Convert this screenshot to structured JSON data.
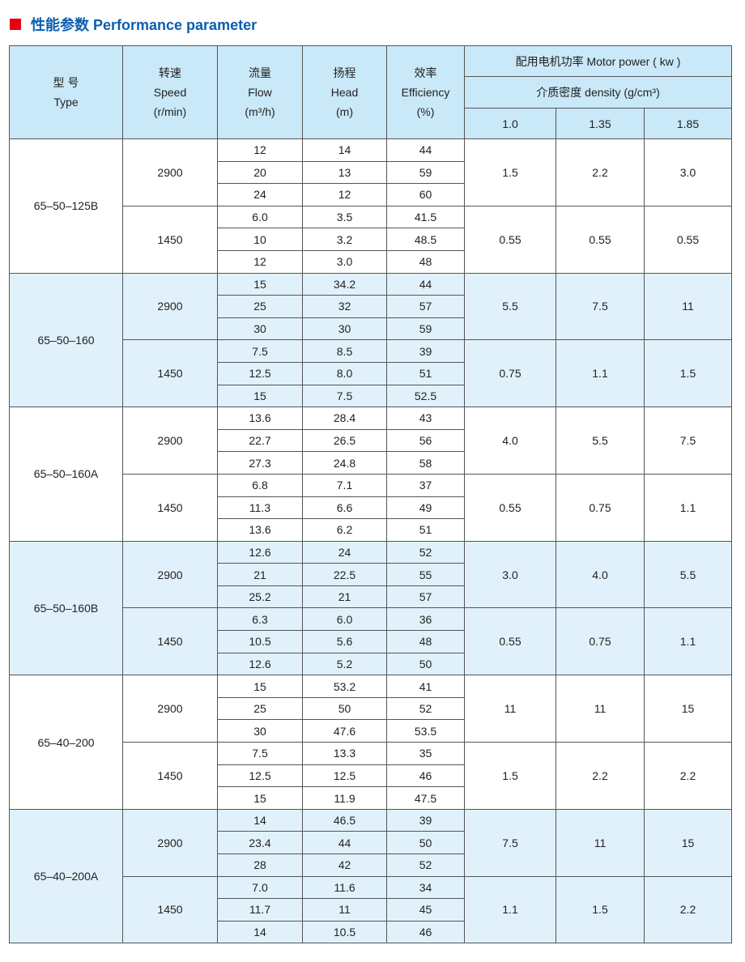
{
  "title": "性能参数 Performance parameter",
  "colors": {
    "accent_square": "#e60012",
    "title": "#0b5fae",
    "header_bg": "#c9e8f8",
    "alt_group_bg": "#e1f1fb"
  },
  "header": {
    "type": [
      "型  号",
      "Type"
    ],
    "speed": [
      "转速",
      "Speed",
      "(r/min)"
    ],
    "flow": [
      "流量",
      "Flow",
      "(m³/h)"
    ],
    "head": [
      "扬程",
      "Head",
      "(m)"
    ],
    "efficiency": [
      "效率",
      "Efficiency",
      "(%)"
    ],
    "motor_power": "配用电机功率 Motor power ( kw )",
    "density": "介质密度  density  (g/cm³)",
    "densities": [
      "1.0",
      "1.35",
      "1.85"
    ]
  },
  "models": [
    {
      "type": "65–50–125B",
      "speeds": [
        {
          "speed": "2900",
          "rows": [
            [
              "12",
              "14",
              "44"
            ],
            [
              "20",
              "13",
              "59"
            ],
            [
              "24",
              "12",
              "60"
            ]
          ],
          "power": [
            "1.5",
            "2.2",
            "3.0"
          ]
        },
        {
          "speed": "1450",
          "rows": [
            [
              "6.0",
              "3.5",
              "41.5"
            ],
            [
              "10",
              "3.2",
              "48.5"
            ],
            [
              "12",
              "3.0",
              "48"
            ]
          ],
          "power": [
            "0.55",
            "0.55",
            "0.55"
          ]
        }
      ]
    },
    {
      "type": "65–50–160",
      "speeds": [
        {
          "speed": "2900",
          "rows": [
            [
              "15",
              "34.2",
              "44"
            ],
            [
              "25",
              "32",
              "57"
            ],
            [
              "30",
              "30",
              "59"
            ]
          ],
          "power": [
            "5.5",
            "7.5",
            "11"
          ]
        },
        {
          "speed": "1450",
          "rows": [
            [
              "7.5",
              "8.5",
              "39"
            ],
            [
              "12.5",
              "8.0",
              "51"
            ],
            [
              "15",
              "7.5",
              "52.5"
            ]
          ],
          "power": [
            "0.75",
            "1.1",
            "1.5"
          ]
        }
      ]
    },
    {
      "type": "65–50–160A",
      "speeds": [
        {
          "speed": "2900",
          "rows": [
            [
              "13.6",
              "28.4",
              "43"
            ],
            [
              "22.7",
              "26.5",
              "56"
            ],
            [
              "27.3",
              "24.8",
              "58"
            ]
          ],
          "power": [
            "4.0",
            "5.5",
            "7.5"
          ]
        },
        {
          "speed": "1450",
          "rows": [
            [
              "6.8",
              "7.1",
              "37"
            ],
            [
              "11.3",
              "6.6",
              "49"
            ],
            [
              "13.6",
              "6.2",
              "51"
            ]
          ],
          "power": [
            "0.55",
            "0.75",
            "1.1"
          ]
        }
      ]
    },
    {
      "type": "65–50–160B",
      "speeds": [
        {
          "speed": "2900",
          "rows": [
            [
              "12.6",
              "24",
              "52"
            ],
            [
              "21",
              "22.5",
              "55"
            ],
            [
              "25.2",
              "21",
              "57"
            ]
          ],
          "power": [
            "3.0",
            "4.0",
            "5.5"
          ]
        },
        {
          "speed": "1450",
          "rows": [
            [
              "6.3",
              "6.0",
              "36"
            ],
            [
              "10.5",
              "5.6",
              "48"
            ],
            [
              "12.6",
              "5.2",
              "50"
            ]
          ],
          "power": [
            "0.55",
            "0.75",
            "1.1"
          ]
        }
      ]
    },
    {
      "type": "65–40–200",
      "speeds": [
        {
          "speed": "2900",
          "rows": [
            [
              "15",
              "53.2",
              "41"
            ],
            [
              "25",
              "50",
              "52"
            ],
            [
              "30",
              "47.6",
              "53.5"
            ]
          ],
          "power": [
            "11",
            "11",
            "15"
          ]
        },
        {
          "speed": "1450",
          "rows": [
            [
              "7.5",
              "13.3",
              "35"
            ],
            [
              "12.5",
              "12.5",
              "46"
            ],
            [
              "15",
              "11.9",
              "47.5"
            ]
          ],
          "power": [
            "1.5",
            "2.2",
            "2.2"
          ]
        }
      ]
    },
    {
      "type": "65–40–200A",
      "speeds": [
        {
          "speed": "2900",
          "rows": [
            [
              "14",
              "46.5",
              "39"
            ],
            [
              "23.4",
              "44",
              "50"
            ],
            [
              "28",
              "42",
              "52"
            ]
          ],
          "power": [
            "7.5",
            "11",
            "15"
          ]
        },
        {
          "speed": "1450",
          "rows": [
            [
              "7.0",
              "11.6",
              "34"
            ],
            [
              "11.7",
              "11",
              "45"
            ],
            [
              "14",
              "10.5",
              "46"
            ]
          ],
          "power": [
            "1.1",
            "1.5",
            "2.2"
          ]
        }
      ]
    }
  ]
}
